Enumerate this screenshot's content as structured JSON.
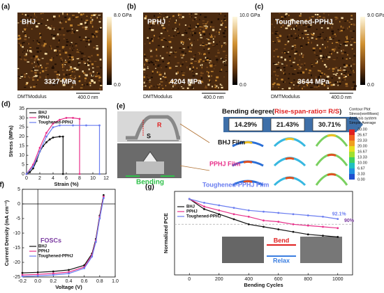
{
  "afm": [
    {
      "label": "(a)",
      "name": "BHJ",
      "modulus": "3327 MPa",
      "scale_max": "8.0 GPa",
      "scale_min": "0.0",
      "channel": "DMTModulus",
      "scale_bar": "400.0 nm"
    },
    {
      "label": "(b)",
      "name": "PPHJ",
      "modulus": "4204 MPa",
      "scale_max": "10.0 GPa",
      "scale_min": "0.0",
      "channel": "DMTModulus",
      "scale_bar": "400.0 nm"
    },
    {
      "label": "(c)",
      "name": "Toughened-PPHJ",
      "modulus": "3644 MPa",
      "scale_max": "9.0 GPa",
      "scale_min": "0.0",
      "channel": "DMTModulus",
      "scale_bar": "400.0 nm"
    }
  ],
  "bending": {
    "label": "(e)",
    "title_pre": "Bending degree(",
    "title_hl": "Rise-span-ratio= R/S",
    "title_post": ")",
    "ratios": [
      "14.29%",
      "21.43%",
      "30.71%"
    ],
    "r": "R",
    "s": "S",
    "action": "Bending",
    "films": [
      "BHJ Film",
      "PPHJ Film",
      "Toughened-PPHJ Film"
    ],
    "legend_title": [
      "Contour Plot",
      "Stress(vonMises)",
      "Analysis system",
      "Simple Average"
    ],
    "legend_values": [
      "30.00",
      "26.67",
      "23.33",
      "20.00",
      "16.67",
      "13.33",
      "10.00",
      "6.67",
      "3.33",
      "0.00"
    ]
  },
  "chart_data": [
    {
      "label": "(d)",
      "type": "line",
      "xlabel": "Strain (%)",
      "ylabel": "Stress (MPa)",
      "xlim": [
        0,
        12
      ],
      "xticks": [
        0,
        2,
        4,
        6,
        8,
        10,
        12
      ],
      "ylim": [
        0,
        35
      ],
      "yticks": [
        0,
        5,
        10,
        15,
        20,
        25,
        30,
        35
      ],
      "legend": "upper left",
      "series": [
        {
          "name": "BHJ",
          "color": "#111111",
          "x": [
            0,
            0.5,
            1,
            1.5,
            2,
            2.5,
            3,
            3.5,
            4,
            5,
            5.5,
            5.5
          ],
          "values": [
            0,
            1,
            3,
            7,
            12,
            15,
            17,
            18.5,
            19.5,
            20,
            20,
            0
          ]
        },
        {
          "name": "PPHJ",
          "color": "#e8308a",
          "x": [
            0,
            1,
            2,
            3,
            4,
            5,
            6,
            7,
            8,
            8
          ],
          "values": [
            0,
            5,
            14,
            22,
            27,
            29,
            30,
            30,
            29.5,
            0
          ]
        },
        {
          "name": "Toughened-PPHJ",
          "color": "#6a7df0",
          "x": [
            0,
            1,
            2,
            3,
            4,
            5,
            7,
            9,
            11,
            11
          ],
          "values": [
            0,
            4,
            12,
            20,
            25,
            26,
            26,
            26,
            26,
            0
          ]
        }
      ]
    },
    {
      "label": "(f)",
      "type": "line",
      "xlabel": "Voltage (V)",
      "ylabel": "Current Density (mA cm⁻²)",
      "annotation": "FOSCs",
      "xlim": [
        -0.2,
        1.0
      ],
      "xticks": [
        -0.2,
        {
          "value": 0,
          "label": "0.0"
        },
        0.2,
        0.4,
        0.6,
        0.8,
        {
          "value": 1,
          "label": "1.0"
        }
      ],
      "ylim": [
        -25,
        5
      ],
      "yticks": [
        -25,
        -20,
        -15,
        -10,
        -5,
        0,
        5
      ],
      "legend": "center left",
      "series": [
        {
          "name": "BHJ",
          "color": "#111111",
          "x": [
            -0.2,
            0,
            0.2,
            0.4,
            0.6,
            0.7,
            0.75,
            0.8,
            0.85
          ],
          "values": [
            -23.6,
            -23.4,
            -23.1,
            -22.6,
            -21,
            -17,
            -12,
            -4,
            3
          ]
        },
        {
          "name": "PPHJ",
          "color": "#e8308a",
          "x": [
            -0.2,
            0,
            0.2,
            0.4,
            0.6,
            0.7,
            0.75,
            0.8,
            0.85
          ],
          "values": [
            -24.3,
            -24.1,
            -23.8,
            -23.3,
            -21.6,
            -17.5,
            -12.5,
            -4.5,
            2.5
          ]
        },
        {
          "name": "Toughened-PPHJ",
          "color": "#6a7df0",
          "x": [
            -0.2,
            0,
            0.2,
            0.4,
            0.6,
            0.7,
            0.75,
            0.8,
            0.85
          ],
          "values": [
            -24.8,
            -24.6,
            -24.3,
            -23.8,
            -22,
            -18,
            -13,
            -5,
            2
          ]
        }
      ]
    },
    {
      "label": "(g)",
      "type": "line",
      "xlabel": "Bending Cycles",
      "ylabel": "Normalized PCE",
      "xlim": [
        -100,
        1100
      ],
      "xticks": [
        0,
        200,
        400,
        600,
        800,
        1000
      ],
      "ylim": [
        0.7,
        1.03
      ],
      "hline": 0.9,
      "annotations": [
        "92.1%",
        "90%"
      ],
      "image_text": [
        "Bend",
        "Relax"
      ],
      "legend": "upper left",
      "series": [
        {
          "name": "BHJ",
          "color": "#111111",
          "x": [
            0,
            100,
            200,
            300,
            400,
            500,
            600,
            700,
            800,
            900,
            1000
          ],
          "values": [
            1.0,
            0.96,
            0.94,
            0.92,
            0.9,
            0.89,
            0.88,
            0.87,
            0.86,
            0.855,
            0.85
          ]
        },
        {
          "name": "PPHJ",
          "color": "#e8308a",
          "x": [
            0,
            100,
            200,
            300,
            400,
            500,
            600,
            700,
            800,
            900,
            1000
          ],
          "values": [
            1.0,
            0.97,
            0.955,
            0.94,
            0.93,
            0.915,
            0.91,
            0.9,
            0.895,
            0.89,
            0.885
          ]
        },
        {
          "name": "Toughened-PPHJ",
          "color": "#6a7df0",
          "x": [
            0,
            100,
            200,
            300,
            400,
            500,
            600,
            700,
            800,
            900,
            1000
          ],
          "values": [
            1.0,
            0.985,
            0.975,
            0.965,
            0.955,
            0.95,
            0.945,
            0.94,
            0.935,
            0.93,
            0.921
          ]
        }
      ]
    }
  ]
}
